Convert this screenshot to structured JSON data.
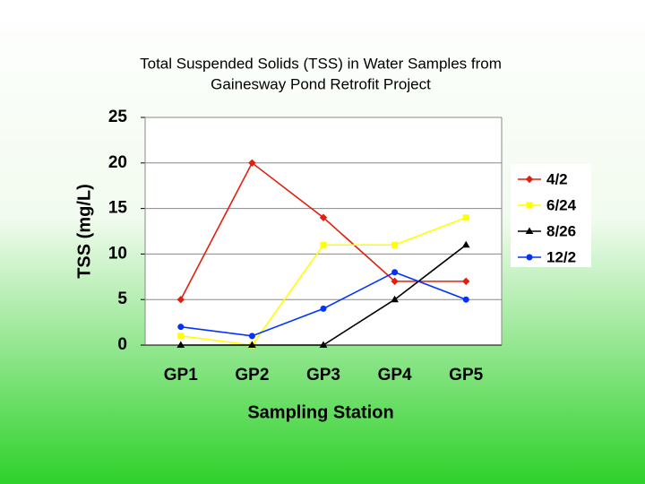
{
  "chart_data": {
    "type": "line",
    "title": [
      "Total Suspended Solids (TSS) in Water Samples from",
      "Gainesway Pond Retrofit Project"
    ],
    "x_label": "Sampling Station",
    "y_label": "TSS (mg/L)",
    "categories": [
      "GP1",
      "GP2",
      "GP3",
      "GP4",
      "GP5"
    ],
    "series": [
      {
        "name": "4/2",
        "color": "#e0200e",
        "marker": "diamond",
        "values": [
          5,
          20,
          14,
          7,
          7
        ]
      },
      {
        "name": "6/24",
        "color": "#ffff00",
        "marker": "square",
        "values": [
          1,
          0,
          11,
          11,
          14
        ]
      },
      {
        "name": "8/26",
        "color": "#000000",
        "marker": "triangle",
        "values": [
          0,
          0,
          0,
          5,
          11
        ]
      },
      {
        "name": "12/2",
        "color": "#0033ff",
        "marker": "circle",
        "values": [
          2,
          1,
          4,
          8,
          5
        ]
      }
    ],
    "ylim": [
      0,
      25
    ],
    "yticks": [
      0,
      5,
      10,
      15,
      20,
      25
    ],
    "grid": true,
    "legend": "right"
  }
}
